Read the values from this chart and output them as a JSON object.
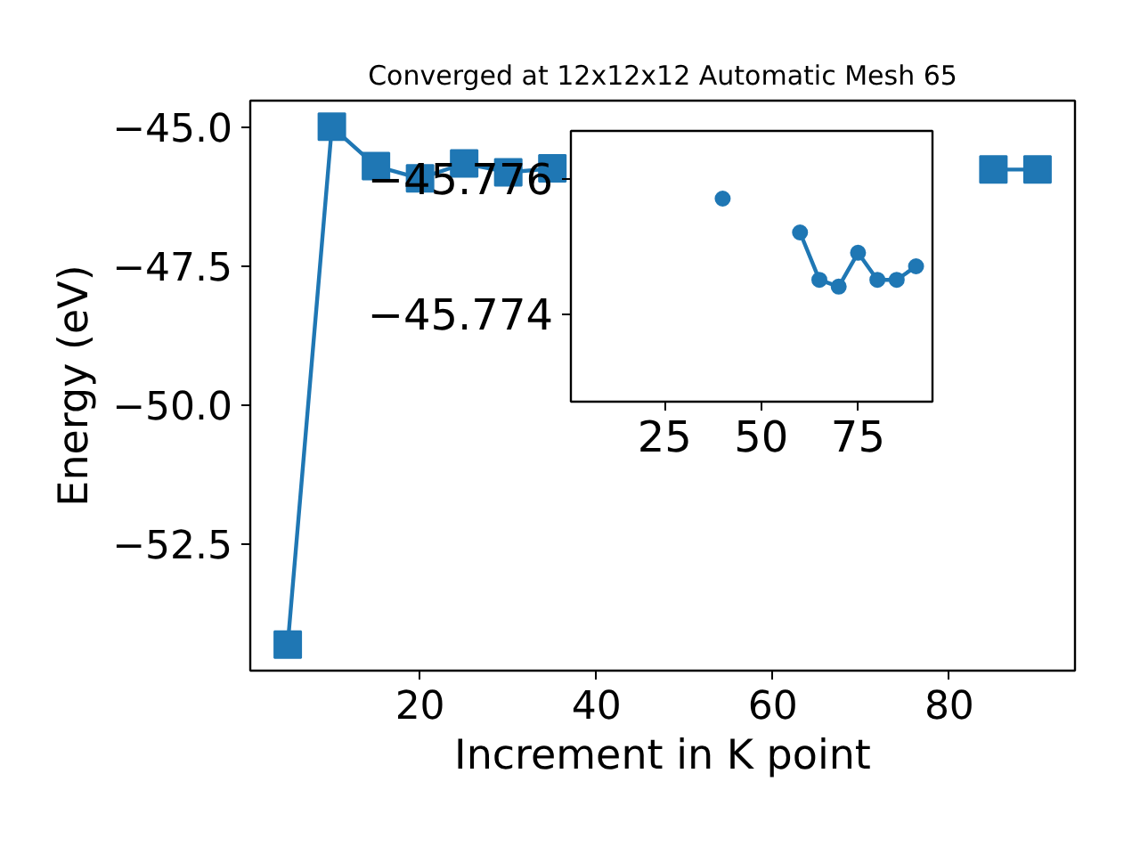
{
  "chart_data": [
    {
      "type": "line",
      "title": "Converged at 12x12x12 Automatic Mesh 65",
      "xlabel": "Increment in K point",
      "ylabel": "Energy (eV)",
      "marker": "square",
      "grid": false,
      "color": "#1f77b4",
      "x": [
        5,
        10,
        15,
        20,
        25,
        30,
        35,
        40,
        45,
        50,
        55,
        60,
        65,
        70,
        75,
        80,
        85,
        90
      ],
      "values": [
        -54.32,
        -45.0,
        -45.71,
        -45.93,
        -45.66,
        -45.82,
        -45.75,
        null,
        null,
        null,
        null,
        null,
        null,
        null,
        null,
        null,
        -45.77,
        -45.77
      ],
      "xlim": [
        0.75,
        94.25
      ],
      "ylim": [
        -54.79,
        -44.53
      ],
      "xticks": [
        20,
        40,
        60,
        80
      ],
      "yticks": [
        {
          "value": -45.0,
          "label": "−45.0"
        },
        {
          "value": -47.5,
          "label": "−47.5"
        },
        {
          "value": -50.0,
          "label": "−50.0"
        },
        {
          "value": -52.5,
          "label": "−52.5"
        }
      ]
    },
    {
      "type": "line",
      "marker": "circle",
      "grid": false,
      "color": "#1f77b4",
      "x": [
        40,
        45,
        50,
        55,
        60,
        65,
        70,
        75,
        80,
        85,
        90
      ],
      "values": [
        -45.7757,
        null,
        null,
        null,
        -45.7752,
        -45.7745,
        -45.7744,
        -45.7749,
        -45.7745,
        -45.7745,
        -45.7747
      ],
      "xlim": [
        0.75,
        94.25
      ],
      "ylim": [
        -45.7727,
        -45.7767
      ],
      "xticks": [
        25,
        50,
        75
      ],
      "yticks": [
        {
          "value": -45.776,
          "label": "−45.776"
        },
        {
          "value": -45.774,
          "label": "−45.774"
        }
      ]
    }
  ]
}
